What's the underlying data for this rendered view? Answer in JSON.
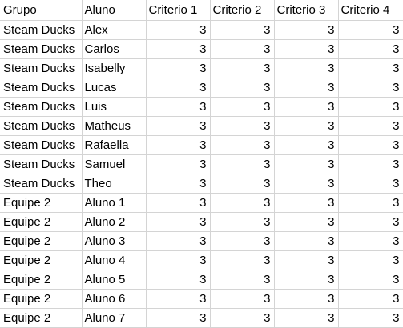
{
  "sheet": {
    "headers": [
      "Grupo",
      "Aluno",
      "Criterio 1",
      "Criterio 2",
      "Criterio 3",
      "Criterio 4"
    ],
    "rows": [
      [
        "Steam Ducks",
        "Alex",
        "3",
        "3",
        "3",
        "3"
      ],
      [
        "Steam Ducks",
        "Carlos",
        "3",
        "3",
        "3",
        "3"
      ],
      [
        "Steam Ducks",
        "Isabelly",
        "3",
        "3",
        "3",
        "3"
      ],
      [
        "Steam Ducks",
        "Lucas",
        "3",
        "3",
        "3",
        "3"
      ],
      [
        "Steam Ducks",
        "Luis",
        "3",
        "3",
        "3",
        "3"
      ],
      [
        "Steam Ducks",
        "Matheus",
        "3",
        "3",
        "3",
        "3"
      ],
      [
        "Steam Ducks",
        "Rafaella",
        "3",
        "3",
        "3",
        "3"
      ],
      [
        "Steam Ducks",
        "Samuel",
        "3",
        "3",
        "3",
        "3"
      ],
      [
        "Steam Ducks",
        "Theo",
        "3",
        "3",
        "3",
        "3"
      ],
      [
        "Equipe 2",
        "Aluno 1",
        "3",
        "3",
        "3",
        "3"
      ],
      [
        "Equipe 2",
        "Aluno 2",
        "3",
        "3",
        "3",
        "3"
      ],
      [
        "Equipe 2",
        "Aluno 3",
        "3",
        "3",
        "3",
        "3"
      ],
      [
        "Equipe 2",
        "Aluno 4",
        "3",
        "3",
        "3",
        "3"
      ],
      [
        "Equipe 2",
        "Aluno 5",
        "3",
        "3",
        "3",
        "3"
      ],
      [
        "Equipe 2",
        "Aluno 6",
        "3",
        "3",
        "3",
        "3"
      ],
      [
        "Equipe 2",
        "Aluno 7",
        "3",
        "3",
        "3",
        "3"
      ]
    ]
  }
}
